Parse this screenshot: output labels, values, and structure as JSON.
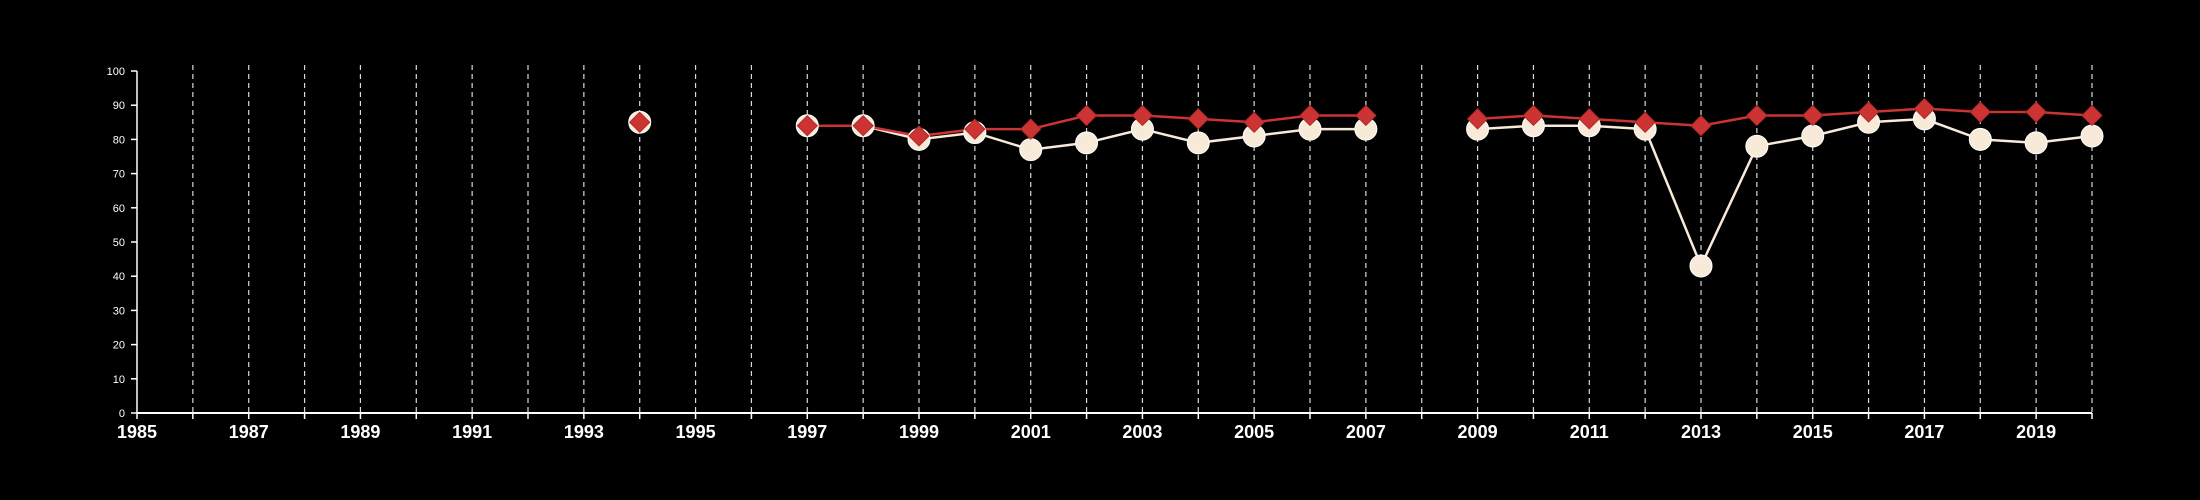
{
  "chart_data": {
    "type": "line",
    "title": "",
    "xlabel": "",
    "ylabel": "",
    "xlim": [
      1985,
      2020
    ],
    "ylim": [
      0,
      100
    ],
    "x_ticks": [
      1985,
      1987,
      1989,
      1991,
      1993,
      1995,
      1997,
      1999,
      2001,
      2003,
      2005,
      2007,
      2009,
      2011,
      2013,
      2015,
      2017,
      2019
    ],
    "y_ticks": [
      0,
      10,
      20,
      30,
      40,
      50,
      60,
      70,
      80,
      90,
      100
    ],
    "vertical_gridlines": "dashed, every year",
    "legend": "none",
    "series": [
      {
        "color": "#cc3333",
        "marker": "diamond",
        "points": [
          {
            "x": 1994,
            "y": 85
          },
          {
            "x": 1997,
            "y": 84
          },
          {
            "x": 1998,
            "y": 84
          },
          {
            "x": 1999,
            "y": 81
          },
          {
            "x": 2000,
            "y": 83
          },
          {
            "x": 2001,
            "y": 83
          },
          {
            "x": 2002,
            "y": 87
          },
          {
            "x": 2003,
            "y": 87
          },
          {
            "x": 2004,
            "y": 86
          },
          {
            "x": 2005,
            "y": 85
          },
          {
            "x": 2006,
            "y": 87
          },
          {
            "x": 2007,
            "y": 87
          },
          {
            "x": 2009,
            "y": 86
          },
          {
            "x": 2010,
            "y": 87
          },
          {
            "x": 2011,
            "y": 86
          },
          {
            "x": 2012,
            "y": 85
          },
          {
            "x": 2013,
            "y": 84
          },
          {
            "x": 2014,
            "y": 87
          },
          {
            "x": 2015,
            "y": 87
          },
          {
            "x": 2016,
            "y": 88
          },
          {
            "x": 2017,
            "y": 89
          },
          {
            "x": 2018,
            "y": 88
          },
          {
            "x": 2019,
            "y": 88
          },
          {
            "x": 2020,
            "y": 87
          }
        ]
      },
      {
        "color": "#f8ead8",
        "marker": "circle",
        "points": [
          {
            "x": 1994,
            "y": 85
          },
          {
            "x": 1997,
            "y": 84
          },
          {
            "x": 1998,
            "y": 84
          },
          {
            "x": 1999,
            "y": 80
          },
          {
            "x": 2000,
            "y": 82
          },
          {
            "x": 2001,
            "y": 77
          },
          {
            "x": 2002,
            "y": 79
          },
          {
            "x": 2003,
            "y": 83
          },
          {
            "x": 2004,
            "y": 79
          },
          {
            "x": 2005,
            "y": 81
          },
          {
            "x": 2006,
            "y": 83
          },
          {
            "x": 2007,
            "y": 83
          },
          {
            "x": 2009,
            "y": 83
          },
          {
            "x": 2010,
            "y": 84
          },
          {
            "x": 2011,
            "y": 84
          },
          {
            "x": 2012,
            "y": 83
          },
          {
            "x": 2013,
            "y": 43
          },
          {
            "x": 2014,
            "y": 78
          },
          {
            "x": 2015,
            "y": 81
          },
          {
            "x": 2016,
            "y": 85
          },
          {
            "x": 2017,
            "y": 86
          },
          {
            "x": 2018,
            "y": 80
          },
          {
            "x": 2019,
            "y": 79
          },
          {
            "x": 2020,
            "y": 81
          }
        ]
      }
    ]
  }
}
